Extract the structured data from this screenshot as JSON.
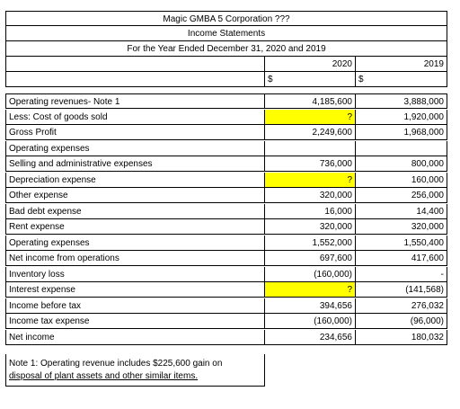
{
  "header": {
    "company": "Magic GMBA 5 Corporation ???",
    "statement": "Income Statements",
    "period": "For the Year Ended December 31, 2020 and 2019",
    "year_2020": "2020",
    "year_2019": "2019"
  },
  "currency_2020": "$",
  "currency_2019": "$",
  "rows": [
    {
      "label": "Operating revenues- Note 1",
      "v2020": "4,185,600",
      "v2019": "3,888,000",
      "highlight": false
    },
    {
      "label": "Less: Cost of goods sold",
      "v2020": "?",
      "v2019": "1,920,000",
      "highlight": true
    },
    {
      "label": "Gross Profit",
      "v2020": "2,249,600",
      "v2019": "1,968,000",
      "highlight": false
    },
    {
      "label": "Operating expenses",
      "v2020": "",
      "v2019": "",
      "highlight": false
    },
    {
      "label": "Selling and administrative expenses",
      "v2020": "736,000",
      "v2019": "800,000",
      "highlight": false
    },
    {
      "label": "Depreciation expense",
      "v2020": "?",
      "v2019": "160,000",
      "highlight": true
    },
    {
      "label": "Other expense",
      "v2020": "320,000",
      "v2019": "256,000",
      "highlight": false
    },
    {
      "label": "Bad debt expense",
      "v2020": "16,000",
      "v2019": "14,400",
      "highlight": false
    },
    {
      "label": "Rent expense",
      "v2020": "320,000",
      "v2019": "320,000",
      "highlight": false
    },
    {
      "label": "Operating expenses",
      "v2020": "1,552,000",
      "v2019": "1,550,400",
      "highlight": false
    },
    {
      "label": "Net income from operations",
      "v2020": "697,600",
      "v2019": "417,600",
      "highlight": false
    },
    {
      "label": "Inventory loss",
      "v2020": "(160,000)",
      "v2019": "-",
      "highlight": false
    },
    {
      "label": "Interest expense",
      "v2020": "?",
      "v2019": "(141,568)",
      "highlight": true
    },
    {
      "label": "Income before tax",
      "v2020": "394,656",
      "v2019": "276,032",
      "highlight": false
    },
    {
      "label": "Income tax expense",
      "v2020": "(160,000)",
      "v2019": "(96,000)",
      "highlight": false
    },
    {
      "label": "Net income",
      "v2020": "234,656",
      "v2019": "180,032",
      "highlight": false
    }
  ],
  "note": {
    "line1": "Note 1: Operating revenue includes $225,600 gain on",
    "line2": "disposal of plant assets and other similar items."
  }
}
